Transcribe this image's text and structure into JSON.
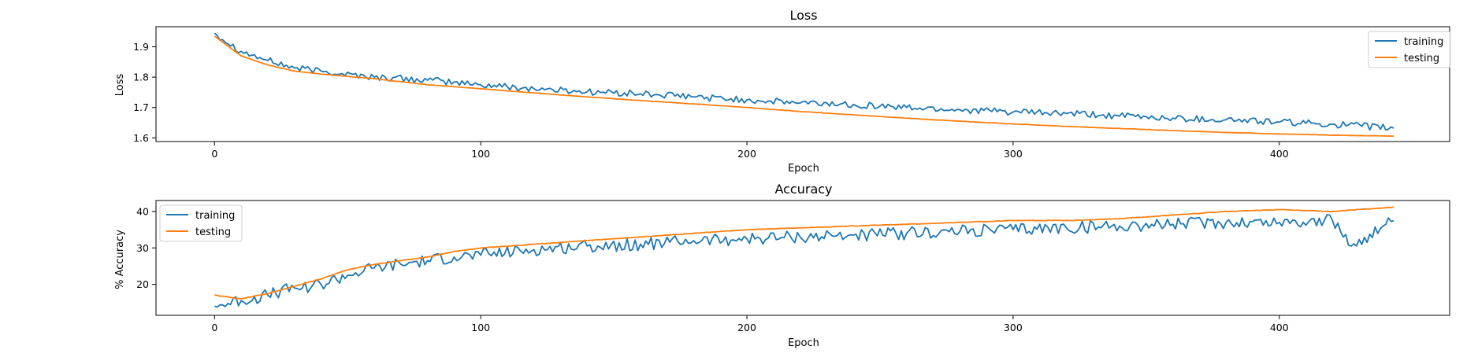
{
  "figure": {
    "background": "#ffffff"
  },
  "chart_data": [
    {
      "type": "line",
      "title": "Loss",
      "xlabel": "Epoch",
      "ylabel": "Loss",
      "xlim": [
        -22,
        464
      ],
      "ylim": [
        1.588,
        1.966
      ],
      "xticks": [
        0,
        100,
        200,
        300,
        400
      ],
      "xtick_labels": [
        "0",
        "100",
        "200",
        "300",
        "400"
      ],
      "yticks": [
        1.6,
        1.7,
        1.8,
        1.9
      ],
      "ytick_labels": [
        "1.6",
        "1.7",
        "1.8",
        "1.9"
      ],
      "grid": false,
      "legend_position": "upper right",
      "series": [
        {
          "name": "training",
          "color": "#1f77b4",
          "x": [
            0,
            10,
            20,
            30,
            40,
            60,
            80,
            100,
            120,
            140,
            160,
            180,
            200,
            220,
            240,
            260,
            280,
            300,
            320,
            340,
            360,
            380,
            400,
            420,
            443
          ],
          "y": [
            1.945,
            1.885,
            1.855,
            1.83,
            1.82,
            1.8,
            1.79,
            1.775,
            1.762,
            1.752,
            1.745,
            1.735,
            1.725,
            1.715,
            1.71,
            1.7,
            1.693,
            1.685,
            1.68,
            1.672,
            1.665,
            1.66,
            1.652,
            1.645,
            1.632
          ]
        },
        {
          "name": "testing",
          "color": "#ff7f0e",
          "x": [
            0,
            10,
            20,
            30,
            40,
            60,
            80,
            100,
            120,
            140,
            160,
            180,
            200,
            220,
            240,
            260,
            280,
            300,
            320,
            340,
            360,
            380,
            400,
            420,
            443
          ],
          "y": [
            1.935,
            1.87,
            1.84,
            1.82,
            1.81,
            1.795,
            1.775,
            1.762,
            1.748,
            1.735,
            1.723,
            1.712,
            1.7,
            1.687,
            1.676,
            1.665,
            1.655,
            1.646,
            1.638,
            1.631,
            1.624,
            1.618,
            1.613,
            1.609,
            1.606
          ]
        }
      ]
    },
    {
      "type": "line",
      "title": "Accuracy",
      "xlabel": "Epoch",
      "ylabel": "% Accuracy",
      "xlim": [
        -22,
        464
      ],
      "ylim": [
        11.5,
        43.0
      ],
      "xticks": [
        0,
        100,
        200,
        300,
        400
      ],
      "xtick_labels": [
        "0",
        "100",
        "200",
        "300",
        "400"
      ],
      "yticks": [
        20,
        30,
        40
      ],
      "ytick_labels": [
        "20",
        "30",
        "40"
      ],
      "grid": false,
      "legend_position": "upper left",
      "series": [
        {
          "name": "training",
          "color": "#1f77b4",
          "x": [
            0,
            10,
            20,
            30,
            40,
            50,
            60,
            70,
            80,
            90,
            100,
            120,
            140,
            160,
            180,
            200,
            220,
            240,
            260,
            280,
            300,
            320,
            340,
            360,
            380,
            400,
            420,
            427,
            443
          ],
          "y": [
            14,
            15.5,
            17,
            19,
            20,
            22.5,
            24.5,
            25.5,
            26.5,
            27.5,
            28,
            29.5,
            30.5,
            31,
            32,
            32.5,
            33,
            33.5,
            34,
            34.5,
            35,
            35.5,
            36,
            36.5,
            37,
            37,
            37.5,
            30.5,
            37.5
          ]
        },
        {
          "name": "testing",
          "color": "#ff7f0e",
          "x": [
            0,
            10,
            20,
            30,
            40,
            50,
            60,
            70,
            80,
            90,
            100,
            120,
            140,
            160,
            180,
            200,
            220,
            240,
            260,
            280,
            300,
            320,
            340,
            360,
            380,
            400,
            420,
            443
          ],
          "y": [
            17,
            16,
            17.5,
            19.5,
            21.5,
            24,
            25.5,
            26.5,
            27.5,
            29,
            30,
            31,
            32,
            33,
            34,
            35,
            35.5,
            36,
            36.5,
            37,
            37.5,
            37.5,
            38,
            39,
            40,
            40.5,
            40,
            41.2
          ]
        }
      ]
    }
  ]
}
